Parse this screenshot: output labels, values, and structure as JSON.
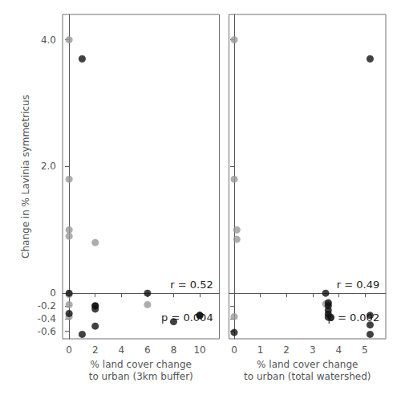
{
  "chart_data": [
    {
      "type": "scatter",
      "xlabel": "% land cover change\nto urban (3km buffer)",
      "ylabel": "Change in % Lavinia symmetricus",
      "series": [
        {
          "color": "#999999",
          "x": [
            0,
            0,
            0,
            0,
            0,
            0,
            0,
            2,
            6
          ],
          "values": [
            4.0,
            1.8,
            1.0,
            0.9,
            -0.02,
            -0.18,
            -0.37,
            0.8,
            -0.18
          ]
        },
        {
          "color": "#111111",
          "x": [
            1,
            1,
            2,
            2,
            2,
            2,
            0,
            0,
            6,
            8,
            10,
            10
          ],
          "values": [
            3.7,
            -0.65,
            -0.52,
            -0.2,
            -0.2,
            -0.25,
            -0.32,
            0.0,
            0.0,
            -0.45,
            -0.35,
            -0.35
          ]
        }
      ],
      "xlim": [
        -0.5,
        11.5
      ],
      "xticks": [
        0,
        2,
        4,
        6,
        8,
        10
      ],
      "ylim": [
        -0.72,
        4.4
      ],
      "yticks": [
        -0.6,
        -0.4,
        -0.2,
        0,
        {
          "value": 2.0,
          "label": "2.0"
        },
        {
          "value": 4.0,
          "label": "4.0"
        }
      ],
      "annotations": [
        "r = 0.52",
        "p = 0.004"
      ],
      "grid": false
    },
    {
      "type": "scatter",
      "xlabel": "% land cover change\nto urban (total watershed)",
      "series": [
        {
          "color": "#999999",
          "x": [
            0,
            0,
            0.1,
            0.1,
            0,
            3.5,
            3.6
          ],
          "values": [
            4.0,
            1.8,
            1.0,
            0.85,
            -0.37,
            -0.17,
            -0.17
          ]
        },
        {
          "color": "#111111",
          "x": [
            0,
            3.5,
            3.6,
            3.6,
            3.6,
            3.6,
            3.6,
            3.7,
            5.2,
            5.2,
            5.2,
            5.2
          ],
          "values": [
            -0.62,
            0.0,
            -0.15,
            -0.2,
            -0.27,
            -0.33,
            -0.38,
            -0.38,
            3.7,
            -0.35,
            -0.5,
            -0.65
          ]
        }
      ],
      "xlim": [
        -0.2,
        5.8
      ],
      "xticks": [
        0,
        1,
        2,
        3,
        4,
        5
      ],
      "ylim": [
        -0.72,
        4.4
      ],
      "yticks": [
        -0.6,
        -0.4,
        -0.2,
        0,
        {
          "value": 2.0,
          "label": "2.0"
        },
        {
          "value": 4.0,
          "label": "4.0"
        }
      ],
      "annotations": [
        "r = 0.49",
        "p = 0.002"
      ],
      "tick_labels": "x",
      "grid": false
    }
  ]
}
